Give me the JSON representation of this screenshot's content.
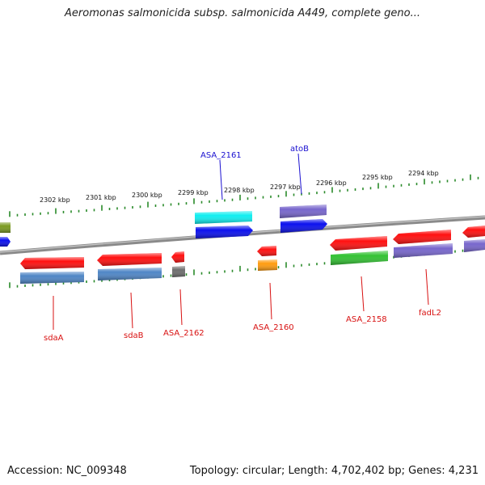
{
  "title": "Aeromonas salmonicida subsp. salmonicida A449, complete geno...",
  "footer": {
    "accession": "Accession: NC_009348",
    "summary": "Topology: circular; Length: 4,702,402 bp; Genes: 4,231"
  },
  "ticks": [
    "2302 kbp",
    "2301 kbp",
    "2300 kbp",
    "2299 kbp",
    "2298 kbp",
    "2297 kbp",
    "2296 kbp",
    "2295 kbp",
    "2294 kbp"
  ],
  "gene_labels": {
    "sdaA": "sdaA",
    "sdaB": "sdaB",
    "asa2162": "ASA_2162",
    "asa2160": "ASA_2160",
    "asa2158": "ASA_2158",
    "fadL2": "fadL2",
    "asa2161": "ASA_2161",
    "atoB": "atoB"
  },
  "colors": {
    "red": "#ff1010",
    "steelblue": "#4f86c6",
    "gray": "#6e6e6e",
    "orange": "#ff9c10",
    "green": "#33c233",
    "purple": "#7766cc",
    "blue": "#0b10ee",
    "cyan": "#10eef0",
    "olive": "#7a9a20",
    "backbone": "#888888",
    "tick": "#2a8a2a",
    "red_label": "#d81010",
    "blue_label": "#1a10d0"
  }
}
